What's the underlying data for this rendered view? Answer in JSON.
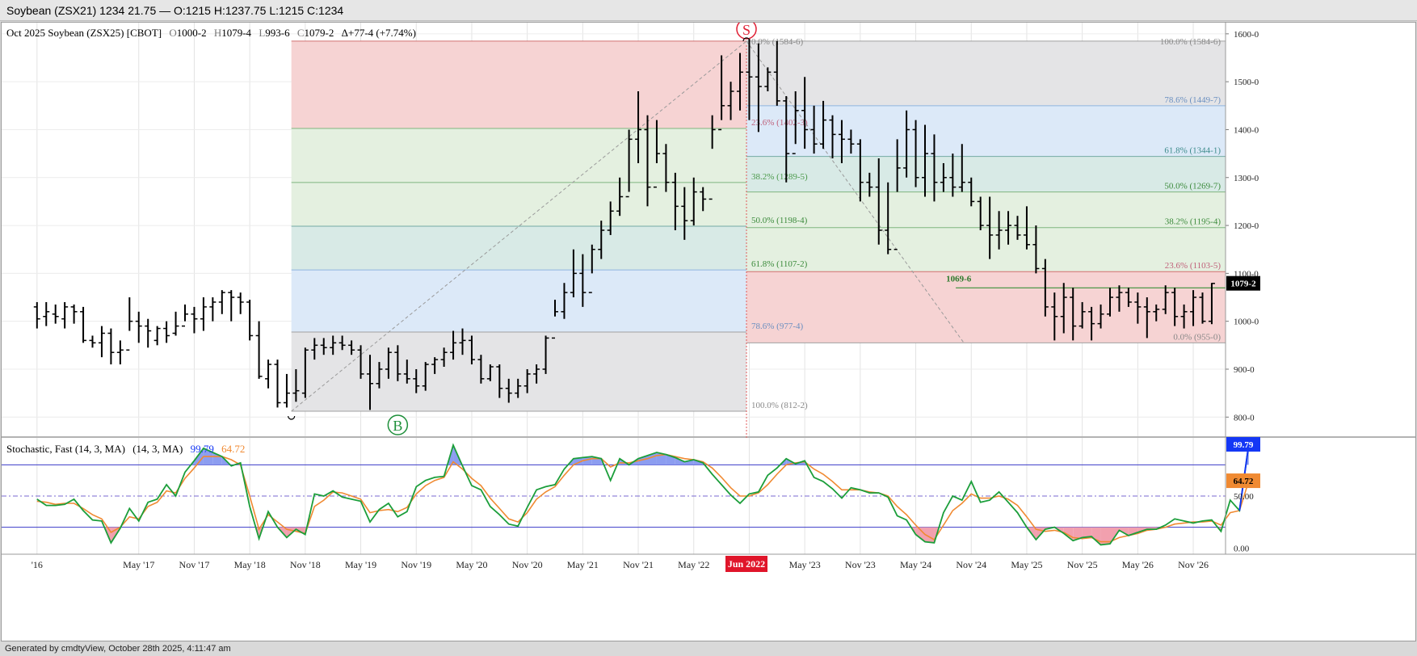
{
  "window": {
    "title": "Soybean (ZSX21) 1234 21.75 — O:1215 H:1237.75 L:1215 C:1234"
  },
  "footer": {
    "text": "Generated by cmdtyView, October 28th 2025, 4:11:47 am"
  },
  "price_header": {
    "symbol": "Oct 2025 Soybean (ZSX25) [CBOT]",
    "o_label": "O",
    "o": "1000-2",
    "h_label": "H",
    "h": "1079-4",
    "l_label": "L",
    "l": "993-6",
    "c_label": "C",
    "c": "1079-2",
    "change": "Δ+77-4 (+7.74%)"
  },
  "stoch_header": {
    "name": "Stochastic, Fast (14, 3, MA)",
    "params": "(14, 3, MA)",
    "k": "99.79",
    "d": "64.72"
  },
  "colors": {
    "red_zone": "#f6d3d3",
    "green_zone": "#e4f0e0",
    "teal_zone": "#d8eae6",
    "blue_zone": "#dce9f8",
    "gray_zone": "#e4e4e6",
    "k_line": "#1b9e3a",
    "d_line": "#f08a32",
    "k_badge": "#1437f5",
    "d_badge": "#f08a32",
    "overbought_fill": "#8c9df0",
    "oversold_fill": "#f2a0ae",
    "signal_red": "#e02035",
    "signal_green": "#1e8f3a"
  },
  "chart_data": [
    {
      "type": "ohlc",
      "title": "Oct 2025 Soybean (ZSX25) [CBOT]",
      "y_range": [
        760,
        1620
      ],
      "y_ticks": [
        "800-0",
        "900-0",
        "1000-0",
        "1100-0",
        "1200-0",
        "1300-0",
        "1400-0",
        "1500-0",
        "1600-0"
      ],
      "y_tick_values": [
        800,
        900,
        1000,
        1100,
        1200,
        1300,
        1400,
        1500,
        1600
      ],
      "x_range": [
        "2016-06",
        "2026-12"
      ],
      "x_ticks": [
        "'16",
        "May '17",
        "Nov '17",
        "May '18",
        "Nov '18",
        "May '19",
        "Nov '19",
        "May '20",
        "Nov '20",
        "May '21",
        "Nov '21",
        "May '22",
        "Nov '22",
        "May '23",
        "Nov '23",
        "May '24",
        "Nov '24",
        "May '25",
        "Nov '25",
        "May '26",
        "Nov '26"
      ],
      "x_tick_months": [
        0,
        11,
        17,
        23,
        29,
        35,
        41,
        47,
        53,
        59,
        65,
        71,
        77,
        83,
        89,
        95,
        101,
        107,
        113,
        119,
        125
      ],
      "first_bar_month": "2016-06",
      "bars": [
        [
          1030,
          1040,
          985,
          1005
        ],
        [
          1010,
          1040,
          990,
          1020
        ],
        [
          1015,
          1035,
          995,
          1010
        ],
        [
          1005,
          1040,
          985,
          1030
        ],
        [
          1030,
          1035,
          995,
          1020
        ],
        [
          1020,
          1030,
          955,
          960
        ],
        [
          960,
          970,
          945,
          955
        ],
        [
          955,
          990,
          925,
          975
        ],
        [
          975,
          985,
          910,
          935
        ],
        [
          935,
          960,
          910,
          940
        ],
        [
          940,
          1050,
          980,
          1000
        ],
        [
          1000,
          1020,
          955,
          990
        ],
        [
          990,
          1005,
          945,
          980
        ],
        [
          960,
          990,
          950,
          985
        ],
        [
          985,
          1000,
          955,
          970
        ],
        [
          975,
          1020,
          970,
          990
        ],
        [
          990,
          1035,
          1000,
          1015
        ],
        [
          1015,
          1030,
          975,
          1005
        ],
        [
          1005,
          1050,
          980,
          1030
        ],
        [
          1030,
          1050,
          1000,
          1040
        ],
        [
          1040,
          1065,
          1015,
          1060
        ],
        [
          1060,
          1065,
          1000,
          1050
        ],
        [
          1050,
          1060,
          1015,
          1040
        ],
        [
          1040,
          1045,
          960,
          970
        ],
        [
          970,
          1000,
          880,
          885
        ],
        [
          880,
          920,
          860,
          910
        ],
        [
          910,
          920,
          820,
          830
        ],
        [
          830,
          890,
          820,
          850
        ],
        [
          850,
          900,
          832,
          855
        ],
        [
          850,
          945,
          840,
          940
        ],
        [
          940,
          965,
          920,
          950
        ],
        [
          950,
          965,
          930,
          945
        ],
        [
          945,
          970,
          930,
          955
        ],
        [
          955,
          970,
          940,
          950
        ],
        [
          950,
          960,
          930,
          940
        ],
        [
          940,
          950,
          880,
          890
        ],
        [
          890,
          930,
          815,
          870
        ],
        [
          870,
          915,
          860,
          900
        ],
        [
          900,
          945,
          880,
          935
        ],
        [
          935,
          950,
          875,
          890
        ],
        [
          890,
          920,
          870,
          880
        ],
        [
          880,
          900,
          850,
          865
        ],
        [
          865,
          915,
          855,
          910
        ],
        [
          910,
          925,
          890,
          920
        ],
        [
          920,
          945,
          905,
          935
        ],
        [
          935,
          980,
          920,
          955
        ],
        [
          955,
          985,
          930,
          960
        ],
        [
          960,
          970,
          910,
          920
        ],
        [
          920,
          930,
          870,
          880
        ],
        [
          880,
          910,
          875,
          905
        ],
        [
          905,
          910,
          840,
          860
        ],
        [
          860,
          880,
          830,
          850
        ],
        [
          850,
          880,
          840,
          865
        ],
        [
          865,
          900,
          850,
          890
        ],
        [
          890,
          910,
          870,
          900
        ],
        [
          900,
          970,
          890,
          965
        ],
        [
          965,
          1045,
          1010,
          1020
        ],
        [
          1020,
          1080,
          1005,
          1060
        ],
        [
          1060,
          1150,
          1050,
          1100
        ],
        [
          1100,
          1140,
          1030,
          1060
        ],
        [
          1060,
          1160,
          1100,
          1150
        ],
        [
          1150,
          1210,
          1130,
          1190
        ],
        [
          1190,
          1250,
          1180,
          1230
        ],
        [
          1230,
          1300,
          1220,
          1260
        ],
        [
          1260,
          1400,
          1270,
          1380
        ],
        [
          1380,
          1480,
          1330,
          1400
        ],
        [
          1400,
          1430,
          1240,
          1280
        ],
        [
          1280,
          1420,
          1330,
          1350
        ],
        [
          1350,
          1370,
          1270,
          1290
        ],
        [
          1290,
          1310,
          1190,
          1240
        ],
        [
          1240,
          1280,
          1170,
          1210
        ],
        [
          1210,
          1300,
          1200,
          1270
        ],
        [
          1270,
          1280,
          1230,
          1255
        ],
        [
          1255,
          1430,
          1360,
          1400
        ],
        [
          1400,
          1555,
          1420,
          1450
        ],
        [
          1450,
          1500,
          1420,
          1480
        ],
        [
          1480,
          1560,
          1440,
          1520
        ],
        [
          1520,
          1600,
          1420,
          1510
        ],
        [
          1510,
          1580,
          1395,
          1490
        ],
        [
          1490,
          1530,
          1480,
          1520
        ],
        [
          1520,
          1585,
          1450,
          1460
        ],
        [
          1460,
          1470,
          1290,
          1350
        ],
        [
          1350,
          1480,
          1370,
          1440
        ],
        [
          1440,
          1510,
          1360,
          1400
        ],
        [
          1400,
          1450,
          1350,
          1370
        ],
        [
          1370,
          1460,
          1360,
          1420
        ],
        [
          1420,
          1430,
          1340,
          1390
        ],
        [
          1390,
          1420,
          1330,
          1380
        ],
        [
          1380,
          1400,
          1350,
          1370
        ],
        [
          1370,
          1380,
          1250,
          1290
        ],
        [
          1290,
          1310,
          1260,
          1280
        ],
        [
          1280,
          1340,
          1160,
          1190
        ],
        [
          1190,
          1290,
          1140,
          1150
        ],
        [
          1150,
          1380,
          1270,
          1320
        ],
        [
          1320,
          1440,
          1300,
          1400
        ],
        [
          1400,
          1420,
          1280,
          1300
        ],
        [
          1300,
          1410,
          1260,
          1350
        ],
        [
          1350,
          1390,
          1250,
          1290
        ],
        [
          1290,
          1330,
          1270,
          1300
        ],
        [
          1300,
          1350,
          1260,
          1280
        ],
        [
          1280,
          1370,
          1270,
          1290
        ],
        [
          1290,
          1300,
          1240,
          1250
        ],
        [
          1250,
          1260,
          1190,
          1200
        ],
        [
          1200,
          1260,
          1130,
          1180
        ],
        [
          1180,
          1230,
          1150,
          1190
        ],
        [
          1190,
          1230,
          1160,
          1200
        ],
        [
          1200,
          1220,
          1170,
          1180
        ],
        [
          1180,
          1240,
          1150,
          1160
        ],
        [
          1160,
          1200,
          1100,
          1110
        ],
        [
          1110,
          1130,
          1010,
          1030
        ],
        [
          1030,
          1060,
          960,
          1010
        ],
        [
          1010,
          1080,
          975,
          1050
        ],
        [
          1050,
          1070,
          960,
          990
        ],
        [
          990,
          1040,
          985,
          1020
        ],
        [
          1020,
          1030,
          960,
          995
        ],
        [
          995,
          1035,
          985,
          1015
        ],
        [
          1015,
          1070,
          1010,
          1050
        ],
        [
          1050,
          1075,
          1020,
          1060
        ],
        [
          1060,
          1070,
          1030,
          1040
        ],
        [
          1040,
          1060,
          995,
          1030
        ],
        [
          1030,
          1050,
          965,
          1020
        ],
        [
          1020,
          1035,
          1000,
          1025
        ],
        [
          1025,
          1075,
          1015,
          1060
        ],
        [
          1060,
          1070,
          990,
          1010
        ],
        [
          1010,
          1035,
          985,
          1020
        ],
        [
          1020,
          1065,
          990,
          1050
        ],
        [
          1050,
          1060,
          995,
          1000
        ],
        [
          1000,
          1080,
          994,
          1079
        ]
      ],
      "fib_swing_up": {
        "levels": [
          {
            "label": "0.0% (1584-6)",
            "value": 1584.75
          },
          {
            "label": "23.6% (1402-3)",
            "value": 1402.4
          },
          {
            "label": "38.2% (1289-5)",
            "value": 1289.6
          },
          {
            "label": "50.0% (1198-4)",
            "value": 1198.5
          },
          {
            "label": "61.8% (1107-2)",
            "value": 1107.25
          },
          {
            "label": "78.6% (977-4)",
            "value": 977.5
          },
          {
            "label": "100.0% (812-2)",
            "value": 812.25
          }
        ]
      },
      "fib_swing_down": {
        "levels": [
          {
            "label": "100.0% (1584-6)",
            "value": 1584.75
          },
          {
            "label": "78.6% (1449-7)",
            "value": 1449.9
          },
          {
            "label": "61.8% (1344-1)",
            "value": 1344.1
          },
          {
            "label": "50.0% (1269-7)",
            "value": 1269.9
          },
          {
            "label": "38.2% (1195-4)",
            "value": 1195.5
          },
          {
            "label": "23.6% (1103-5)",
            "value": 1103.6
          },
          {
            "label": "0.0% (955-0)",
            "value": 955.0
          }
        ]
      },
      "horizontal_line": {
        "label": "1069-6",
        "value": 1069.75
      },
      "last_price_label": "1079-2",
      "last_price": 1079.25,
      "marker_sell": "S",
      "marker_buy": "B",
      "cursor_date_label": "Jun 2022"
    },
    {
      "type": "line",
      "title": "Stochastic, Fast (14, 3, MA)",
      "y_range": [
        -6,
        106
      ],
      "y_ticks": [
        "0.00",
        "50.00"
      ],
      "y_tick_values": [
        0,
        50
      ],
      "overbought": 80,
      "oversold": 20,
      "midline": 50,
      "series": [
        {
          "name": "99.79",
          "values": [
            47,
            41,
            41,
            42,
            47,
            36,
            27,
            26,
            5,
            19,
            38,
            26,
            44,
            47,
            61,
            50,
            73,
            84,
            96,
            92,
            88,
            79,
            82,
            40,
            9,
            35,
            20,
            10,
            18,
            13,
            52,
            50,
            55,
            49,
            47,
            45,
            25,
            37,
            43,
            30,
            35,
            59,
            65,
            68,
            69,
            99,
            79,
            60,
            56,
            40,
            32,
            23,
            21,
            39,
            56,
            59,
            61,
            76,
            86,
            87,
            88,
            86,
            65,
            86,
            80,
            86,
            89,
            92,
            90,
            87,
            83,
            85,
            82,
            71,
            61,
            51,
            43,
            52,
            54,
            70,
            77,
            86,
            81,
            84,
            68,
            64,
            57,
            48,
            58,
            56,
            53,
            53,
            49,
            31,
            27,
            13,
            6,
            5,
            34,
            50,
            46,
            64,
            44,
            46,
            54,
            44,
            34,
            20,
            8,
            18,
            20,
            14,
            7,
            10,
            11,
            3,
            4,
            17,
            12,
            15,
            18,
            18,
            22,
            28,
            26,
            24,
            26,
            27,
            16,
            46,
            36,
            99.79
          ]
        },
        {
          "name": "64.72",
          "values": [
            45,
            44,
            42,
            43,
            43,
            38,
            32,
            28,
            15,
            20,
            30,
            28,
            40,
            44,
            55,
            53,
            67,
            77,
            88,
            88,
            88,
            85,
            80,
            50,
            18,
            32,
            25,
            18,
            16,
            14,
            40,
            46,
            54,
            53,
            50,
            47,
            34,
            36,
            37,
            35,
            39,
            52,
            60,
            65,
            68,
            83,
            76,
            67,
            60,
            48,
            38,
            28,
            25,
            34,
            47,
            54,
            59,
            70,
            80,
            84,
            86,
            86,
            78,
            82,
            82,
            84,
            86,
            89,
            90,
            88,
            86,
            85,
            83,
            77,
            68,
            58,
            50,
            50,
            53,
            61,
            71,
            80,
            82,
            83,
            76,
            71,
            64,
            56,
            56,
            56,
            54,
            53,
            50,
            40,
            32,
            22,
            13,
            8,
            22,
            36,
            43,
            52,
            48,
            48,
            50,
            47,
            41,
            30,
            18,
            16,
            17,
            15,
            10,
            9,
            10,
            6,
            6,
            10,
            12,
            14,
            17,
            18,
            20,
            23,
            24,
            25,
            25,
            26,
            22,
            34,
            36,
            64.72
          ]
        }
      ]
    }
  ]
}
